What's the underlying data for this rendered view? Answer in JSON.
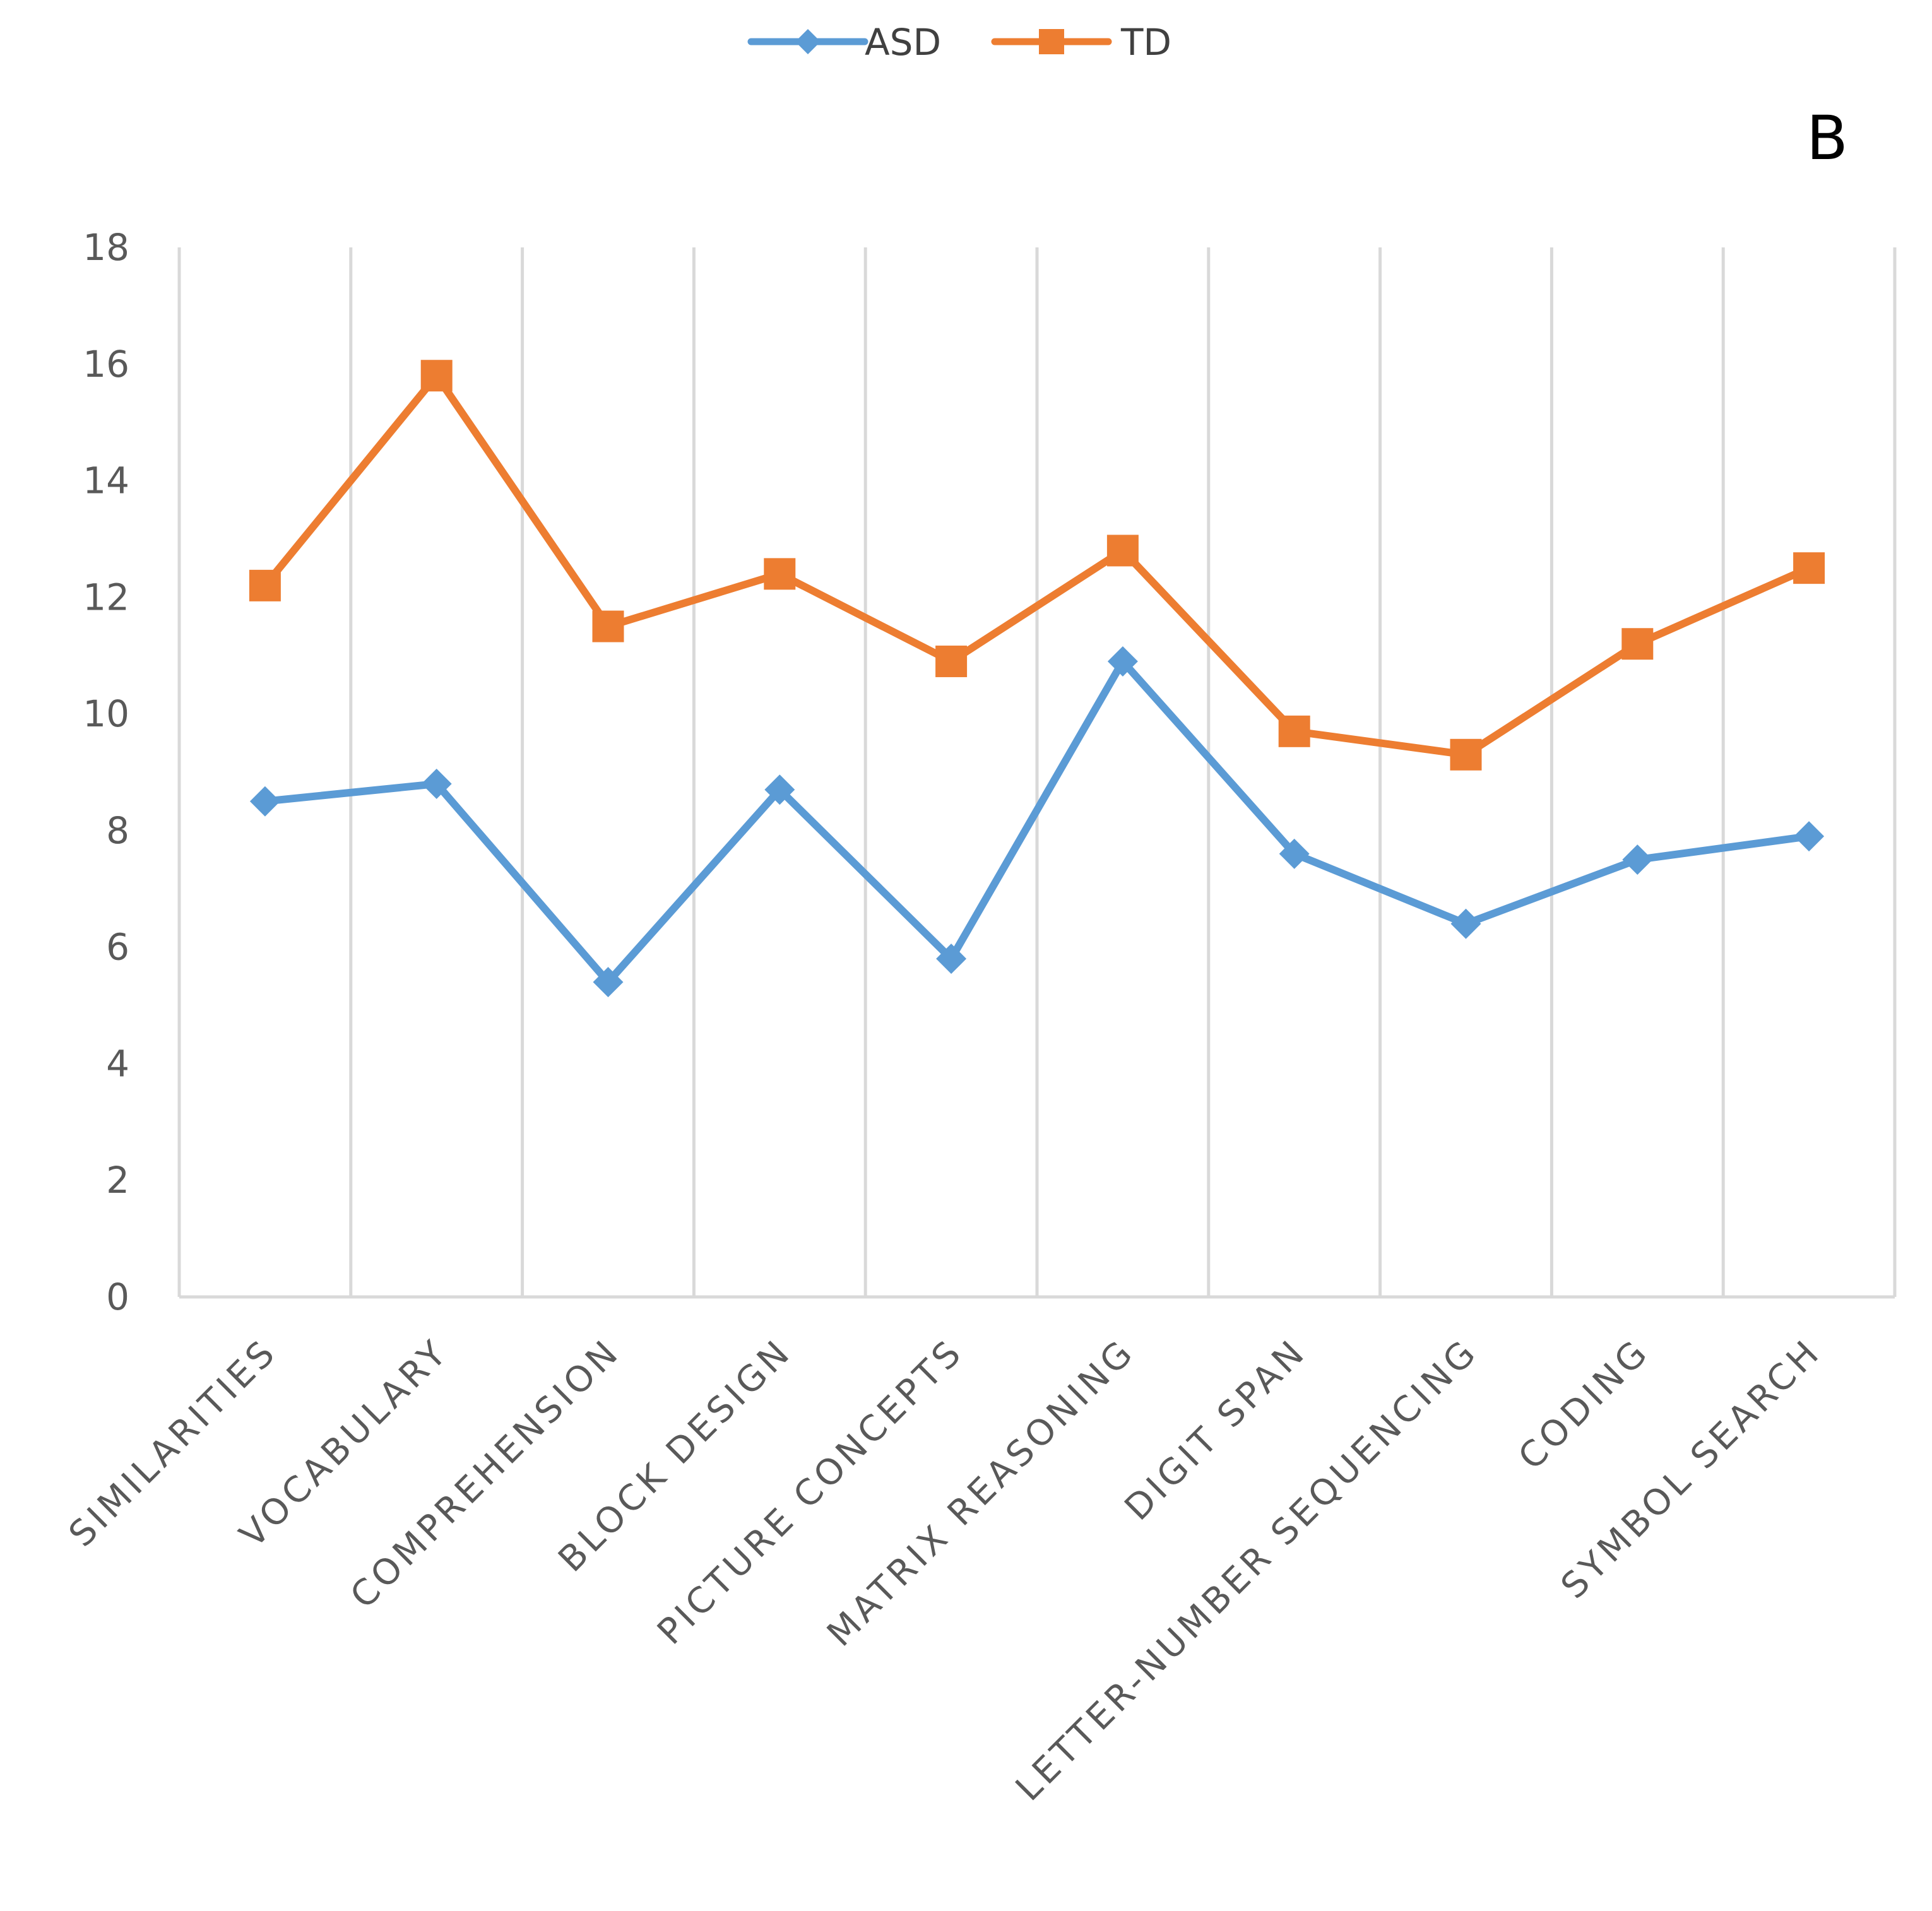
{
  "panel_label": "B",
  "chart_data": {
    "type": "line",
    "title": "",
    "xlabel": "",
    "ylabel": "",
    "ylim": [
      0,
      18
    ],
    "yticks": [
      0,
      2,
      4,
      6,
      8,
      10,
      12,
      14,
      16,
      18
    ],
    "grid": "vertical",
    "legend_position": "top-center",
    "categories": [
      "SIMILARITIES",
      "VOCABULARY",
      "COMPREHENSION",
      "BLOCK DESIGN",
      "PICTURE CONCEPTS",
      "MATRIX REASONING",
      "DIGIT SPAN",
      "LETTER-NUMBER SEQUENCING",
      "CODING",
      "SYMBOL SEARCH"
    ],
    "series": [
      {
        "name": "ASD",
        "color": "#5B9BD5",
        "marker": "diamond",
        "values": [
          8.5,
          8.8,
          5.4,
          8.7,
          5.8,
          10.9,
          7.6,
          6.4,
          7.5,
          7.9
        ]
      },
      {
        "name": "TD",
        "color": "#ED7D31",
        "marker": "square",
        "values": [
          12.2,
          15.8,
          11.5,
          12.4,
          10.9,
          12.8,
          9.7,
          9.3,
          11.2,
          12.5
        ]
      }
    ]
  }
}
